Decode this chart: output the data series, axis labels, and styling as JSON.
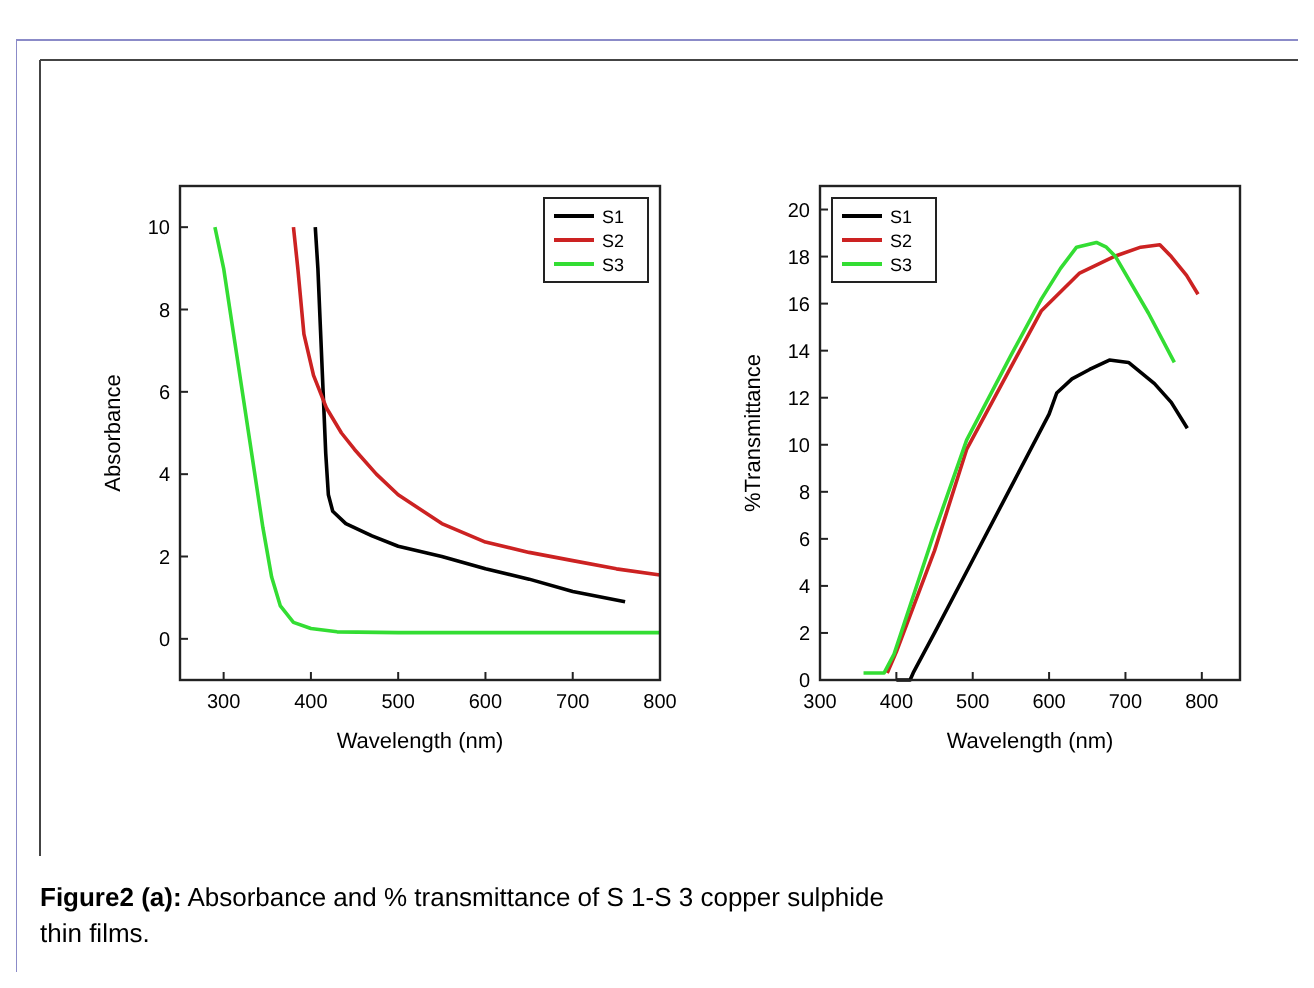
{
  "chart_data": [
    {
      "type": "line",
      "xlabel": "Wavelength (nm)",
      "ylabel": "Absorbance",
      "xlim": [
        250,
        800
      ],
      "xticks": [
        300,
        400,
        500,
        600,
        700,
        800
      ],
      "ylim": [
        -1,
        11
      ],
      "yticks": [
        0,
        2,
        4,
        6,
        8,
        10
      ],
      "legend": "top right",
      "annotations": [
        "Figure2 (a): Absorbance and % transmittance of S 1-S 3 copper sulphide thin films."
      ],
      "series": [
        {
          "name": "S1",
          "color": "#000000",
          "x": [
            405,
            408,
            411,
            414,
            417,
            420,
            425,
            440,
            470,
            500,
            550,
            600,
            650,
            700,
            760
          ],
          "values": [
            10,
            9,
            7.5,
            6,
            4.5,
            3.5,
            3.1,
            2.8,
            2.5,
            2.25,
            2,
            1.7,
            1.45,
            1.15,
            0.9
          ]
        },
        {
          "name": "S2",
          "color": "#cc2222",
          "x": [
            380,
            385,
            392,
            403,
            418,
            435,
            450,
            475,
            500,
            550,
            600,
            650,
            700,
            750,
            800
          ],
          "values": [
            10,
            9,
            7.4,
            6.4,
            5.6,
            5,
            4.6,
            4,
            3.5,
            2.8,
            2.35,
            2.1,
            1.9,
            1.7,
            1.55
          ]
        },
        {
          "name": "S3",
          "color": "#33dd33",
          "x": [
            290,
            300,
            310,
            320,
            335,
            345,
            355,
            365,
            380,
            400,
            430,
            500,
            600,
            700,
            800
          ],
          "values": [
            10,
            9,
            7.6,
            6.2,
            4.1,
            2.7,
            1.5,
            0.8,
            0.4,
            0.25,
            0.17,
            0.15,
            0.15,
            0.15,
            0.15
          ]
        }
      ]
    },
    {
      "type": "line",
      "xlabel": "Wavelength (nm)",
      "ylabel": "%Transmittance",
      "xlim": [
        300,
        850
      ],
      "xticks": [
        300,
        400,
        500,
        600,
        700,
        800
      ],
      "ylim": [
        0,
        21
      ],
      "yticks": [
        0,
        2,
        4,
        6,
        8,
        10,
        12,
        14,
        16,
        18,
        20
      ],
      "legend": "top left",
      "series": [
        {
          "name": "S1",
          "color": "#000000",
          "x": [
            400,
            418,
            422,
            450,
            500,
            550,
            600,
            610,
            630,
            653,
            679,
            704,
            738,
            760,
            781
          ],
          "values": [
            0,
            0,
            0.3,
            2,
            5.1,
            8.2,
            11.3,
            12.2,
            12.8,
            13.2,
            13.6,
            13.5,
            12.6,
            11.8,
            10.7
          ]
        },
        {
          "name": "S2",
          "color": "#cc2222",
          "x": [
            388,
            400,
            450,
            492,
            550,
            590,
            640,
            685,
            720,
            745,
            760,
            780,
            795
          ],
          "values": [
            0.3,
            1.2,
            5.5,
            9.8,
            13.3,
            15.7,
            17.3,
            18,
            18.4,
            18.5,
            18,
            17.2,
            16.4
          ]
        },
        {
          "name": "S3",
          "color": "#33dd33",
          "x": [
            357,
            370,
            384,
            397,
            450,
            492,
            550,
            590,
            615,
            636,
            662,
            675,
            687,
            730,
            764
          ],
          "values": [
            0.3,
            0.3,
            0.3,
            1.1,
            6.3,
            10.2,
            13.8,
            16.2,
            17.5,
            18.4,
            18.6,
            18.4,
            18,
            15.6,
            13.5
          ]
        }
      ]
    }
  ]
}
